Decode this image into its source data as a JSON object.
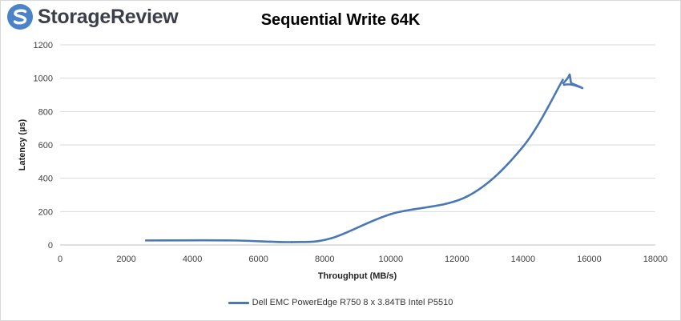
{
  "brand": {
    "name": "StorageReview",
    "logo_icon": "storagereview-logo-icon",
    "logo_color": "#4a83c9"
  },
  "chart_data": {
    "type": "line",
    "title": "Sequential Write 64K",
    "xlabel": "Throughput (MB/s)",
    "ylabel": "Latency (µs)",
    "xlim": [
      0,
      18000
    ],
    "ylim": [
      0,
      1200
    ],
    "x_ticks": [
      "0",
      "2000",
      "4000",
      "6000",
      "8000",
      "10000",
      "12000",
      "14000",
      "16000",
      "18000"
    ],
    "y_ticks": [
      "0",
      "200",
      "400",
      "600",
      "800",
      "1000",
      "1200"
    ],
    "grid": "horizontal",
    "legend_position": "bottom",
    "series": [
      {
        "name": "Dell EMC PowerEdge R750 8 x 3.84TB Intel P5510",
        "color": "#4a78b5",
        "x": [
          2600,
          5200,
          7000,
          8200,
          10000,
          12300,
          14000,
          15200
        ],
        "y": [
          27,
          27,
          17,
          40,
          185,
          290,
          590,
          990
        ]
      }
    ]
  }
}
